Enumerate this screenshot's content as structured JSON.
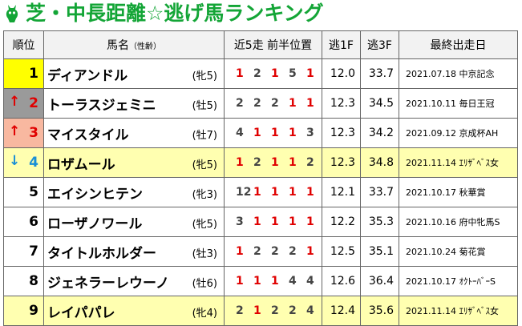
{
  "title": "芝・中長距離☆逃げ馬ランキング",
  "headers": {
    "rank": "順位",
    "horse": "馬名",
    "horse_sub": "（性齢）",
    "results": "近5走 前半位置",
    "nige": "逃1F",
    "f3": "逃3F",
    "last": "最終出走日"
  },
  "rows": [
    {
      "rank": "1",
      "arrow": "",
      "name": "ディアンドル",
      "sexage": "(牝5)",
      "r": [
        "1",
        "2",
        "1",
        "5",
        "1"
      ],
      "nige": "12.0",
      "f3": "33.7",
      "last": "2021.07.18 中京記念"
    },
    {
      "rank": "2",
      "arrow": "↑",
      "name": "トーラスジェミニ",
      "sexage": "(牡5)",
      "r": [
        "2",
        "2",
        "2",
        "1",
        "1"
      ],
      "nige": "12.3",
      "f3": "34.5",
      "last": "2021.10.11 毎日王冠"
    },
    {
      "rank": "3",
      "arrow": "↑",
      "name": "マイスタイル",
      "sexage": "(牡7)",
      "r": [
        "4",
        "1",
        "1",
        "1",
        "3"
      ],
      "nige": "12.3",
      "f3": "34.2",
      "last": "2021.09.12 京成杯AH"
    },
    {
      "rank": "4",
      "arrow": "↓",
      "name": "ロザムール",
      "sexage": "(牝5)",
      "r": [
        "1",
        "2",
        "1",
        "1",
        "2"
      ],
      "nige": "12.3",
      "f3": "34.8",
      "last": "2021.11.14 ｴﾘｻﾞﾍﾞｽ女"
    },
    {
      "rank": "5",
      "arrow": "",
      "name": "エイシンヒテン",
      "sexage": "(牝3)",
      "r": [
        "12",
        "1",
        "1",
        "1",
        "1"
      ],
      "nige": "12.1",
      "f3": "33.7",
      "last": "2021.10.17 秋華賞"
    },
    {
      "rank": "6",
      "arrow": "",
      "name": "ローザノワール",
      "sexage": "(牝5)",
      "r": [
        "3",
        "1",
        "1",
        "1",
        "1"
      ],
      "nige": "12.2",
      "f3": "35.3",
      "last": "2021.10.16 府中牝馬S"
    },
    {
      "rank": "7",
      "arrow": "",
      "name": "タイトルホルダー",
      "sexage": "(牡3)",
      "r": [
        "1",
        "2",
        "2",
        "2",
        "1"
      ],
      "nige": "12.5",
      "f3": "35.1",
      "last": "2021.10.24 菊花賞"
    },
    {
      "rank": "8",
      "arrow": "",
      "name": "ジェネラーレウーノ",
      "sexage": "(牡6)",
      "r": [
        "1",
        "1",
        "1",
        "4",
        "4"
      ],
      "nige": "12.6",
      "f3": "36.4",
      "last": "2021.10.17 ｵｸﾄｰﾊﾞｰS"
    },
    {
      "rank": "9",
      "arrow": "",
      "name": "レイパパレ",
      "sexage": "(牝4)",
      "r": [
        "2",
        "1",
        "2",
        "2",
        "4"
      ],
      "nige": "12.4",
      "f3": "35.6",
      "last": "2021.11.14 ｴﾘｻﾞﾍﾞｽ女"
    }
  ],
  "colors": {
    "title_green": "#13a536",
    "red": "#e00000",
    "blue": "#1a8fd6",
    "highlight": "#ffffb0",
    "gold": "#ffff00"
  },
  "icons": {
    "logo": "horse-head-icon"
  }
}
